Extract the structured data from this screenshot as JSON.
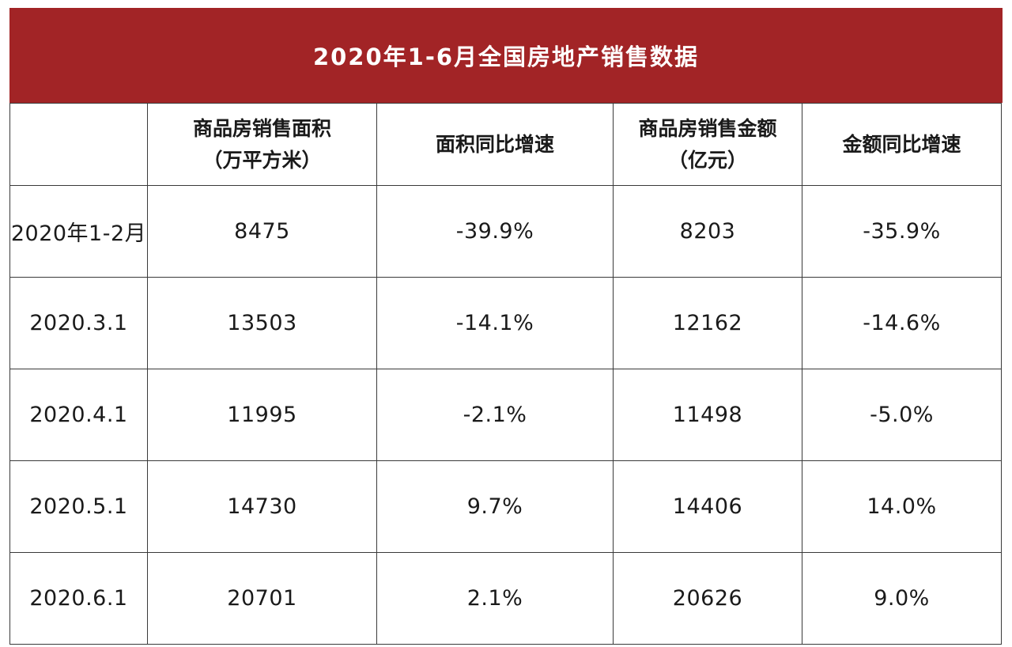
{
  "title": "2020年1-6月全国房地产销售数据",
  "colors": {
    "title_bar": "#a22426",
    "title_text": "#ffffff",
    "grid": "#3a3a3a"
  },
  "chart_data": {
    "type": "table",
    "title": "2020年1-6月全国房地产销售数据",
    "columns": [
      {
        "line1": "",
        "line2": ""
      },
      {
        "line1": "商品房销售面积",
        "line2": "（万平方米）"
      },
      {
        "line1": "面积同比增速",
        "line2": ""
      },
      {
        "line1": "商品房销售金额",
        "line2": "（亿元）"
      },
      {
        "line1": "金额同比增速",
        "line2": ""
      }
    ],
    "rows": [
      [
        "2020年1-2月",
        "8475",
        "-39.9%",
        "8203",
        "-35.9%"
      ],
      [
        "2020.3.1",
        "13503",
        "-14.1%",
        "12162",
        "-14.6%"
      ],
      [
        "2020.4.1",
        "11995",
        "-2.1%",
        "11498",
        "-5.0%"
      ],
      [
        "2020.5.1",
        "14730",
        "9.7%",
        "14406",
        "14.0%"
      ],
      [
        "2020.6.1",
        "20701",
        "2.1%",
        "20626",
        "9.0%"
      ]
    ]
  }
}
